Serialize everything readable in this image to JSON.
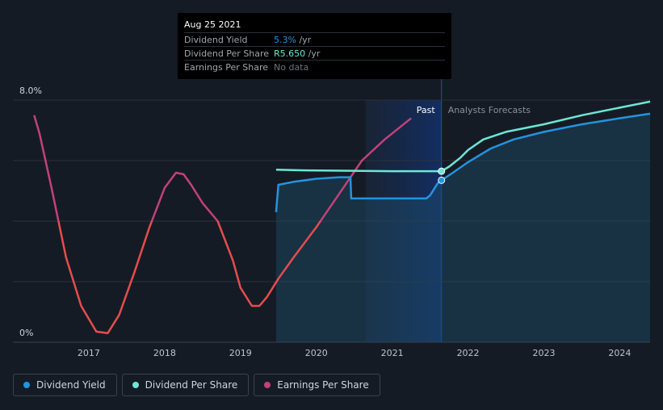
{
  "colors": {
    "background": "#151b24",
    "dividend_yield": "#2394df",
    "dividend_per_share": "#6ee6d6",
    "earnings_per_share": "#c2417a",
    "earnings_per_share_negative": "#e44d4d"
  },
  "tooltip": {
    "date": "Aug 25 2021",
    "rows": [
      {
        "label": "Dividend Yield",
        "value": "5.3%",
        "unit": " /yr",
        "color": "#2394df"
      },
      {
        "label": "Dividend Per Share",
        "value": "R5.650",
        "unit": " /yr",
        "color": "#6ee6d6"
      },
      {
        "label": "Earnings Per Share",
        "value": "No data",
        "unit": "",
        "color": "#6d737c"
      }
    ]
  },
  "legend": [
    {
      "label": "Dividend Yield",
      "color": "#2394df"
    },
    {
      "label": "Dividend Per Share",
      "color": "#6ee6d6"
    },
    {
      "label": "Earnings Per Share",
      "color": "#c2417a"
    }
  ],
  "chart_data": {
    "type": "line",
    "ylim": [
      0,
      8
    ],
    "y_tick_labels": [
      "8.0%",
      "0%"
    ],
    "x_tick_labels": [
      "2017",
      "2018",
      "2019",
      "2020",
      "2021",
      "2022",
      "2023",
      "2024"
    ],
    "xlim": [
      2016.0,
      2024.4
    ],
    "past_label": "Past",
    "forecast_label": "Analysts Forecasts",
    "forecast_start": 2021.65,
    "grid": true,
    "series": [
      {
        "name": "Dividend Yield",
        "color": "#2394df",
        "x": [
          2019.47,
          2019.5,
          2019.7,
          2020.0,
          2020.3,
          2020.45,
          2020.46,
          2020.7,
          2021.0,
          2021.3,
          2021.45,
          2021.5,
          2021.55,
          2021.6,
          2021.65,
          2021.8,
          2022.0,
          2022.3,
          2022.6,
          2023.0,
          2023.5,
          2024.0,
          2024.4
        ],
        "y": [
          4.3,
          5.2,
          5.3,
          5.4,
          5.45,
          5.45,
          4.75,
          4.75,
          4.75,
          4.75,
          4.75,
          4.85,
          5.05,
          5.25,
          5.35,
          5.6,
          5.95,
          6.4,
          6.7,
          6.95,
          7.2,
          7.4,
          7.55
        ]
      },
      {
        "name": "Dividend Per Share",
        "color": "#6ee6d6",
        "x": [
          2019.47,
          2019.8,
          2020.2,
          2020.6,
          2021.0,
          2021.3,
          2021.65,
          2021.75,
          2021.9,
          2022.0,
          2022.2,
          2022.5,
          2023.0,
          2023.5,
          2024.0,
          2024.4
        ],
        "y": [
          5.7,
          5.68,
          5.67,
          5.66,
          5.65,
          5.65,
          5.65,
          5.8,
          6.1,
          6.35,
          6.7,
          6.95,
          7.2,
          7.5,
          7.75,
          7.95
        ]
      },
      {
        "name": "Earnings Per Share",
        "color": "#c2417a",
        "x": [
          2016.28,
          2016.35,
          2016.5,
          2016.7,
          2016.9,
          2017.1,
          2017.25,
          2017.4,
          2017.6,
          2017.8,
          2018.0,
          2018.15,
          2018.25,
          2018.35,
          2018.5,
          2018.7,
          2018.9,
          2019.0,
          2019.15,
          2019.25,
          2019.35,
          2019.5,
          2019.7,
          2020.0,
          2020.3,
          2020.6,
          2020.9,
          2021.1,
          2021.25
        ],
        "y": [
          7.5,
          6.9,
          5.2,
          2.8,
          1.2,
          0.35,
          0.3,
          0.9,
          2.3,
          3.8,
          5.1,
          5.6,
          5.55,
          5.2,
          4.6,
          4.0,
          2.7,
          1.8,
          1.2,
          1.2,
          1.5,
          2.1,
          2.8,
          3.8,
          4.9,
          6.0,
          6.7,
          7.1,
          7.4
        ]
      }
    ],
    "markers": [
      {
        "series": "Dividend Per Share",
        "x": 2021.65,
        "y": 5.65
      },
      {
        "series": "Dividend Yield",
        "x": 2021.65,
        "y": 5.35
      }
    ]
  }
}
